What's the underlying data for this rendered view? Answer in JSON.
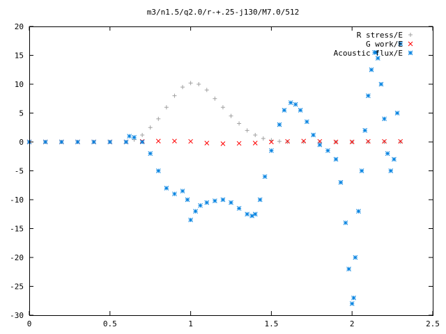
{
  "chart_data": {
    "type": "scatter",
    "title": "m3/n1.5/q2.0/r-+.25-j130/M7.0/512",
    "xlabel": "",
    "ylabel": "",
    "xlim": [
      0,
      2.5
    ],
    "ylim": [
      -30,
      20
    ],
    "x_ticks": [
      "0",
      "0.5",
      "1",
      "1.5",
      "2",
      "2.5"
    ],
    "y_ticks": [
      "20",
      "15",
      "10",
      "5",
      "0",
      "-5",
      "-10",
      "-15",
      "-20",
      "-25",
      "-30"
    ],
    "grid": false,
    "legend_position": "top-right",
    "series": [
      {
        "name": "R stress/E",
        "marker": "+",
        "color": "#a0a0a0",
        "x": [
          0.0,
          0.1,
          0.2,
          0.3,
          0.4,
          0.5,
          0.6,
          0.65,
          0.7,
          0.75,
          0.8,
          0.85,
          0.9,
          0.95,
          1.0,
          1.05,
          1.1,
          1.15,
          1.2,
          1.25,
          1.3,
          1.35,
          1.4,
          1.45,
          1.5,
          1.55,
          1.6,
          1.7,
          1.8,
          1.9,
          2.0,
          2.1,
          2.2,
          2.3
        ],
        "y": [
          0.0,
          0.0,
          0.0,
          0.0,
          0.0,
          0.0,
          0.0,
          0.4,
          1.2,
          2.5,
          4.0,
          6.0,
          8.0,
          9.5,
          10.2,
          10.0,
          9.0,
          7.5,
          6.0,
          4.5,
          3.2,
          2.0,
          1.2,
          0.6,
          0.3,
          0.1,
          0.0,
          0.0,
          0.0,
          0.0,
          0.0,
          0.0,
          0.0,
          0.0
        ]
      },
      {
        "name": "G work/E",
        "marker": "x",
        "color": "#ff0000",
        "x": [
          0.0,
          0.1,
          0.2,
          0.3,
          0.4,
          0.5,
          0.6,
          0.7,
          0.8,
          0.9,
          1.0,
          1.1,
          1.2,
          1.3,
          1.4,
          1.5,
          1.6,
          1.7,
          1.8,
          1.9,
          2.0,
          2.1,
          2.2,
          2.3
        ],
        "y": [
          0.0,
          0.0,
          0.0,
          0.0,
          0.0,
          0.0,
          0.0,
          0.1,
          0.15,
          0.15,
          0.1,
          -0.2,
          -0.3,
          -0.25,
          -0.2,
          0.0,
          0.1,
          0.15,
          0.1,
          0.0,
          0.0,
          0.1,
          0.1,
          0.1
        ]
      },
      {
        "name": "Acoustic flux/E",
        "marker": "*",
        "color": "#0080e0",
        "x": [
          0.0,
          0.1,
          0.2,
          0.3,
          0.4,
          0.5,
          0.6,
          0.62,
          0.65,
          0.7,
          0.75,
          0.8,
          0.85,
          0.9,
          0.95,
          0.98,
          1.0,
          1.03,
          1.06,
          1.1,
          1.15,
          1.2,
          1.25,
          1.3,
          1.35,
          1.38,
          1.4,
          1.43,
          1.46,
          1.5,
          1.55,
          1.58,
          1.62,
          1.65,
          1.68,
          1.72,
          1.76,
          1.8,
          1.85,
          1.9,
          1.93,
          1.96,
          1.98,
          2.0,
          2.01,
          2.02,
          2.04,
          2.06,
          2.08,
          2.1,
          2.12,
          2.14,
          2.15,
          2.16,
          2.18,
          2.2,
          2.22,
          2.24,
          2.26,
          2.28,
          2.3
        ],
        "y": [
          0.0,
          0.0,
          0.0,
          0.0,
          0.0,
          0.0,
          0.0,
          1.0,
          0.8,
          0.0,
          -2.0,
          -5.0,
          -8.0,
          -9.0,
          -8.5,
          -10.0,
          -13.5,
          -12.0,
          -11.0,
          -10.5,
          -10.2,
          -10.0,
          -10.5,
          -11.5,
          -12.5,
          -12.8,
          -12.5,
          -10.0,
          -6.0,
          -1.5,
          3.0,
          5.5,
          6.8,
          6.5,
          5.5,
          3.5,
          1.2,
          -0.5,
          -1.5,
          -3.0,
          -7.0,
          -14.0,
          -22.0,
          -28.0,
          -27.0,
          -20.0,
          -12.0,
          -5.0,
          2.0,
          8.0,
          12.5,
          15.5,
          15.5,
          14.5,
          10.0,
          4.0,
          -2.0,
          -5.0,
          -3.0,
          5.0,
          17.0
        ]
      }
    ]
  }
}
